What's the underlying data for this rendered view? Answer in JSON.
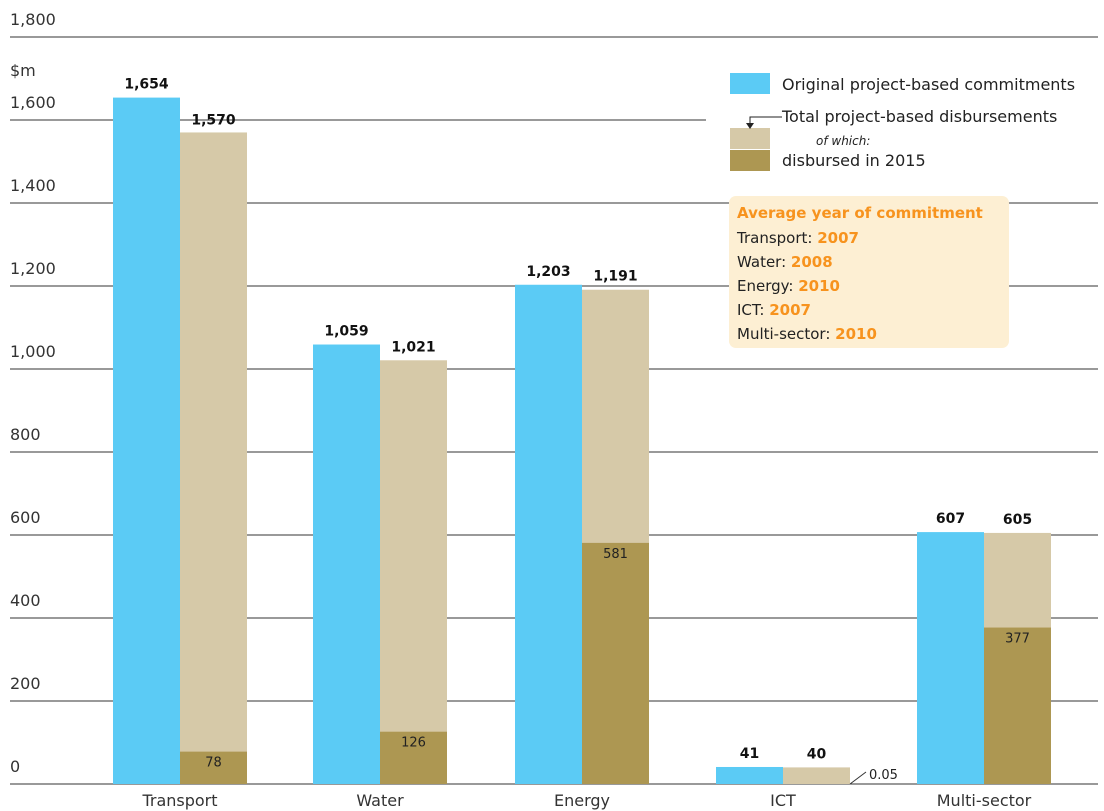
{
  "chart_data": {
    "type": "bar",
    "ylabel": "$m",
    "ylim": [
      0,
      1800
    ],
    "yticks": [
      "0",
      "200",
      "400",
      "600",
      "800",
      "1,000",
      "1,200",
      "1,400",
      "1,600",
      "1,800"
    ],
    "categories": [
      "Transport",
      "Water",
      "Energy",
      "ICT",
      "Multi-sector"
    ],
    "series": [
      {
        "name": "Original project-based commitments",
        "values": [
          1654,
          1059,
          1203,
          41,
          607
        ],
        "labels": [
          "1,654",
          "1,059",
          "1,203",
          "41",
          "607"
        ]
      },
      {
        "name": "Total project-based disbursements",
        "values": [
          1570,
          1021,
          1191,
          40,
          605
        ],
        "labels": [
          "1,570",
          "1,021",
          "1,191",
          "40",
          "605"
        ]
      },
      {
        "name": "disbursed in 2015",
        "values": [
          78,
          126,
          581,
          0.05,
          377
        ],
        "labels": [
          "78",
          "126",
          "581",
          "0.05",
          "377"
        ]
      }
    ],
    "legend": {
      "commitments": "Original project-based commitments",
      "disbursements": "Total project-based disbursements",
      "of_which": "of which:",
      "disbursed_2015": "disbursed in 2015"
    },
    "average_year_box": {
      "title": "Average year of commitment",
      "rows": [
        {
          "label": "Transport:",
          "year": "2007"
        },
        {
          "label": "Water:",
          "year": "2008"
        },
        {
          "label": "Energy:",
          "year": "2010"
        },
        {
          "label": "ICT:",
          "year": "2007"
        },
        {
          "label": "Multi-sector:",
          "year": "2010"
        }
      ]
    },
    "colors": {
      "commitments": "#5bcbf5",
      "disbursements": "#d6c9a8",
      "disbursed_2015": "#ad9752",
      "box_bg": "#fdefd3",
      "accent": "#f7931e",
      "grid": "#333333"
    },
    "grid": true
  }
}
